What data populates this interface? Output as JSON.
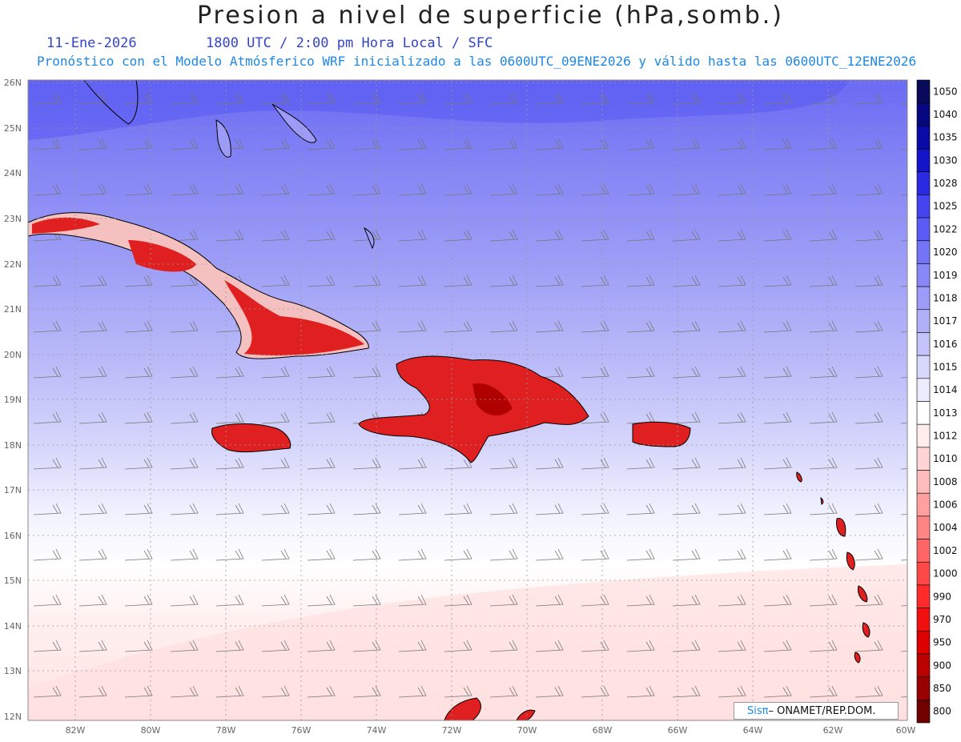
{
  "header": {
    "title": "Presion a nivel de superficie (hPa,somb.)",
    "date": "11-Ene-2026",
    "time": "1800 UTC / 2:00 pm Hora Local / SFC",
    "subtitle": "Pronóstico con el Modelo Atmósferico WRF inicializado a las 0600UTC_09ENE2026 y válido hasta las  0600UTC_12ENE2026"
  },
  "map": {
    "lat_labels": [
      "26N",
      "25N",
      "24N",
      "23N",
      "22N",
      "21N",
      "20N",
      "19N",
      "18N",
      "17N",
      "16N",
      "15N",
      "14N",
      "13N",
      "12N"
    ],
    "lon_labels": [
      "82W",
      "80W",
      "78W",
      "76W",
      "74W",
      "72W",
      "70W",
      "68W",
      "66W",
      "64W",
      "62W",
      "60W"
    ],
    "land_color": "#e02020",
    "land_dark_color": "#b00000"
  },
  "colorbar": {
    "labels": [
      "1050",
      "1040",
      "1035",
      "1030",
      "1028",
      "1025",
      "1022",
      "1020",
      "1019",
      "1018",
      "1017",
      "1016",
      "1015",
      "1014",
      "1013",
      "1012",
      "1010",
      "1008",
      "1006",
      "1004",
      "1002",
      "1000",
      "990",
      "970",
      "950",
      "900",
      "850",
      "800"
    ],
    "colors": [
      "#0a0a5a",
      "#06067e",
      "#0a0aa6",
      "#1414c8",
      "#2a2ae0",
      "#4444f0",
      "#5c5cf4",
      "#7474f6",
      "#8888f6",
      "#9c9cf8",
      "#b0b0f8",
      "#c4c4fa",
      "#d8d8fc",
      "#ececfe",
      "#ffffff",
      "#ffecec",
      "#ffd4d4",
      "#ffbcbc",
      "#ffa0a0",
      "#ff8484",
      "#ff6666",
      "#ff4848",
      "#ff2a2a",
      "#f01010",
      "#dd0000",
      "#bb0000",
      "#990000",
      "#6e0000"
    ]
  },
  "footer": {
    "logo_brand": "Sisπ",
    "logo_text": "– ONAMET/REP.DOM."
  }
}
